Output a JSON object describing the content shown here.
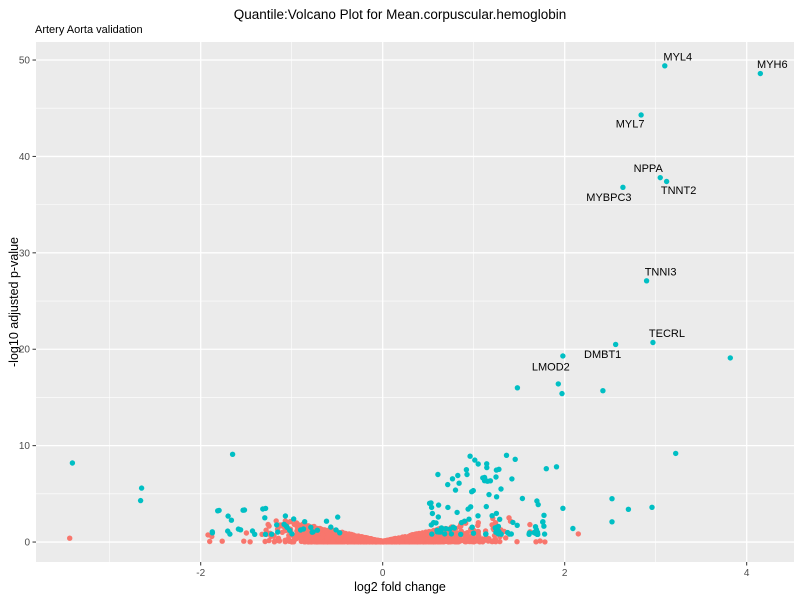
{
  "chart_data": {
    "type": "scatter",
    "subtype": "volcano-plot",
    "title": "Quantile:Volcano Plot for Mean.corpuscular.hemoglobin",
    "subtitle": "Artery Aorta validation",
    "xlabel": "log2 fold change",
    "ylabel": "-log10 adjusted p-value",
    "xlim": [
      -3.81,
      4.52
    ],
    "ylim": [
      -2.07,
      51.87
    ],
    "x_axis": {
      "major_ticks": [
        -2,
        0,
        2,
        4
      ],
      "minor_ticks": [
        -3,
        -1,
        1,
        3
      ]
    },
    "y_axis": {
      "major_ticks": [
        0,
        10,
        20,
        30,
        40,
        50
      ],
      "minor_ticks": [
        5,
        15,
        25,
        35,
        45
      ]
    },
    "grid": "white major+minor gridlines on grey panel",
    "legend": "none",
    "colors": {
      "significant": "#00BFC4",
      "not_significant": "#F8766D",
      "panel_background": "#EBEBEB",
      "gridline": "#FFFFFF",
      "tick_label": "#4D4D4D",
      "axis_tick": "#333333",
      "text": "#000000"
    },
    "labeled_points": [
      {
        "gene": "MYL4",
        "x": 3.1,
        "y": 49.4,
        "label_offset": [
          13,
          -9
        ]
      },
      {
        "gene": "MYH6",
        "x": 4.15,
        "y": 48.6,
        "label_offset": [
          12,
          -9
        ]
      },
      {
        "gene": "MYL7",
        "x": 2.84,
        "y": 44.3,
        "label_offset": [
          -11,
          9
        ]
      },
      {
        "gene": "NPPA",
        "x": 3.05,
        "y": 37.8,
        "label_offset": [
          -12,
          -9
        ]
      },
      {
        "gene": "TNNT2",
        "x": 3.12,
        "y": 37.4,
        "label_offset": [
          12,
          9
        ]
      },
      {
        "gene": "MYBPC3",
        "x": 2.64,
        "y": 36.8,
        "label_offset": [
          -14,
          10
        ]
      },
      {
        "gene": "TNNI3",
        "x": 2.9,
        "y": 27.1,
        "label_offset": [
          14,
          -9
        ]
      },
      {
        "gene": "TECRL",
        "x": 2.97,
        "y": 20.7,
        "label_offset": [
          14,
          -9
        ]
      },
      {
        "gene": "DMBT1",
        "x": 2.56,
        "y": 20.5,
        "label_offset": [
          -13,
          10
        ]
      },
      {
        "gene": "LMOD2",
        "x": 1.98,
        "y": 19.3,
        "label_offset": [
          -12,
          11
        ]
      }
    ],
    "significant_points": [
      [
        3.82,
        19.1
      ],
      [
        2.42,
        15.7
      ],
      [
        1.97,
        15.4
      ],
      [
        1.93,
        16.4
      ],
      [
        1.48,
        16.0
      ],
      [
        -3.41,
        8.2
      ],
      [
        -1.65,
        9.1
      ],
      [
        -2.65,
        5.6
      ],
      [
        -2.66,
        4.3
      ],
      [
        1.91,
        7.8
      ],
      [
        3.22,
        9.2
      ],
      [
        1.98,
        3.5
      ],
      [
        2.09,
        1.4
      ],
      [
        2.52,
        4.5
      ],
      [
        2.52,
        2.1
      ],
      [
        2.7,
        3.4
      ],
      [
        2.96,
        3.6
      ],
      [
        0.96,
        8.9
      ],
      [
        1.36,
        9.0
      ],
      [
        1.05,
        8.1
      ],
      [
        0.92,
        7.5
      ],
      [
        1.12,
        6.7
      ],
      [
        0.84,
        6.1
      ],
      [
        1.3,
        5.5
      ]
    ],
    "nonsignificant_points": [
      [
        -3.44,
        0.4
      ],
      [
        2.15,
        0.85
      ]
    ],
    "background_distribution": {
      "seed": 20240601,
      "nonsignificant_cloud": {
        "count": 2000,
        "tail_fraction": 0.15,
        "x_core_scale": 0.95,
        "x_tail_scale": 1.5,
        "x_min": -2.15,
        "x_max": 1.8,
        "envelope_base": 0.06,
        "envelope_slope": 2.1,
        "envelope_max": 2.55,
        "y_power": 2.0
      },
      "significant_left_cloud": {
        "count": 40,
        "x_min": -1.95,
        "x_max": -0.45,
        "y_min": 0.8,
        "y_spread": 2.7,
        "y_power": 1.7
      },
      "significant_right_cloud": {
        "count": 95,
        "x_min": 0.5,
        "x_max": 1.8,
        "y_min": 0.8,
        "y_spread": 7.8,
        "y_power": 2.4
      }
    },
    "point_radius_px": 2.7
  }
}
